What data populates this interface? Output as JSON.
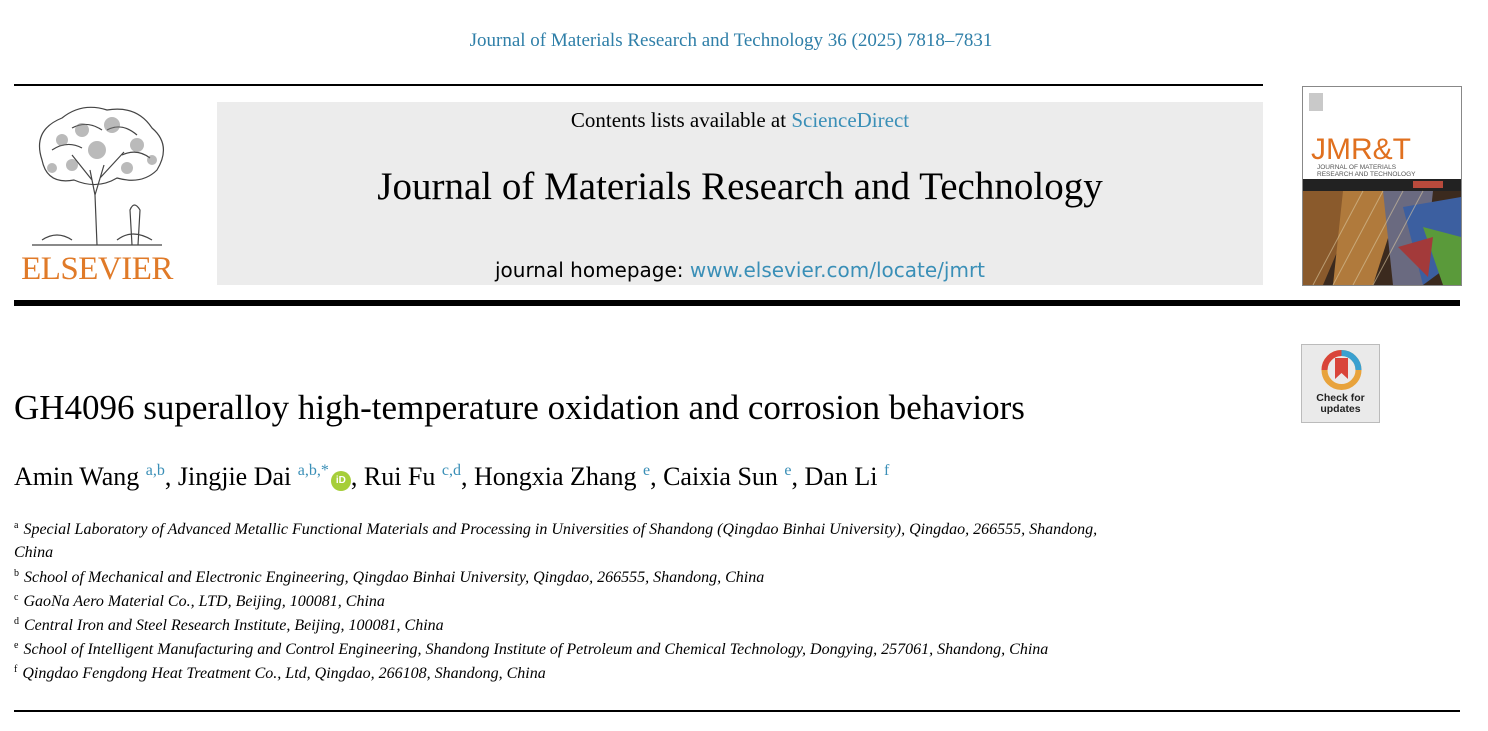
{
  "citation": "Journal of Materials Research and Technology 36 (2025) 7818–7831",
  "header": {
    "publisher_logo_text": "ELSEVIER",
    "contents_prefix": "Contents lists available at",
    "contents_link": "ScienceDirect",
    "journal_title": "Journal of Materials Research and Technology",
    "homepage_prefix": "journal homepage:",
    "homepage_url": "www.elsevier.com/locate/jmrt"
  },
  "cover": {
    "abbrev": "JMR&T",
    "subtitle_line1": "JOURNAL OF MATERIALS",
    "subtitle_line2": "RESEARCH AND TECHNOLOGY"
  },
  "crossmark": {
    "line1": "Check for",
    "line2": "updates"
  },
  "article": {
    "title": "GH4096 superalloy high-temperature oxidation and corrosion behaviors",
    "authors": [
      {
        "name": "Amin Wang",
        "sup": "a,b",
        "orcid": false
      },
      {
        "name": "Jingjie Dai",
        "sup": "a,b,*",
        "orcid": true
      },
      {
        "name": "Rui Fu",
        "sup": "c,d",
        "orcid": false
      },
      {
        "name": "Hongxia Zhang",
        "sup": "e",
        "orcid": false
      },
      {
        "name": "Caixia Sun",
        "sup": "e",
        "orcid": false
      },
      {
        "name": "Dan Li",
        "sup": "f",
        "orcid": false
      }
    ],
    "affiliations": [
      {
        "key": "a",
        "line1": "Special Laboratory of Advanced Metallic Functional Materials and Processing in Universities of Shandong (Qingdao Binhai University), Qingdao, 266555, Shandong,",
        "line2": "China"
      },
      {
        "key": "b",
        "line1": "School of Mechanical and Electronic Engineering, Qingdao Binhai University, Qingdao, 266555, Shandong, China"
      },
      {
        "key": "c",
        "line1": "GaoNa Aero Material Co., LTD, Beijing, 100081, China"
      },
      {
        "key": "d",
        "line1": "Central Iron and Steel Research Institute, Beijing, 100081, China"
      },
      {
        "key": "e",
        "line1": "School of Intelligent Manufacturing and Control Engineering, Shandong Institute of Petroleum and Chemical Technology, Dongying, 257061, Shandong, China"
      },
      {
        "key": "f",
        "line1": "Qingdao Fengdong Heat Treatment Co., Ltd, Qingdao, 266108, Shandong, China"
      }
    ]
  }
}
